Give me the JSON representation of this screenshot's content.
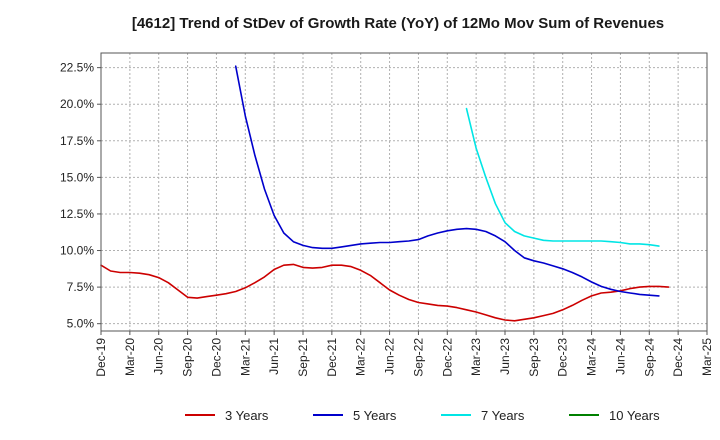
{
  "chart_data": {
    "type": "line",
    "title": "[4612]  Trend of StDev of Growth Rate (YoY) of 12Mo Mov Sum of Revenues",
    "xlabel": "",
    "ylabel": "",
    "ylim": [
      4.5,
      23.5
    ],
    "yticks": [
      {
        "value": 5.0,
        "label": "5.0%"
      },
      {
        "value": 7.5,
        "label": "7.5%"
      },
      {
        "value": 10.0,
        "label": "10.0%"
      },
      {
        "value": 12.5,
        "label": "12.5%"
      },
      {
        "value": 15.0,
        "label": "15.0%"
      },
      {
        "value": 17.5,
        "label": "17.5%"
      },
      {
        "value": 20.0,
        "label": "20.0%"
      },
      {
        "value": 22.5,
        "label": "22.5%"
      }
    ],
    "xticks": [
      {
        "index": 0,
        "label": "Dec-19"
      },
      {
        "index": 3,
        "label": "Mar-20"
      },
      {
        "index": 6,
        "label": "Jun-20"
      },
      {
        "index": 9,
        "label": "Sep-20"
      },
      {
        "index": 12,
        "label": "Dec-20"
      },
      {
        "index": 15,
        "label": "Mar-21"
      },
      {
        "index": 18,
        "label": "Jun-21"
      },
      {
        "index": 21,
        "label": "Sep-21"
      },
      {
        "index": 24,
        "label": "Dec-21"
      },
      {
        "index": 27,
        "label": "Mar-22"
      },
      {
        "index": 30,
        "label": "Jun-22"
      },
      {
        "index": 33,
        "label": "Sep-22"
      },
      {
        "index": 36,
        "label": "Dec-22"
      },
      {
        "index": 39,
        "label": "Mar-23"
      },
      {
        "index": 42,
        "label": "Jun-23"
      },
      {
        "index": 45,
        "label": "Sep-23"
      },
      {
        "index": 48,
        "label": "Dec-23"
      },
      {
        "index": 51,
        "label": "Mar-24"
      },
      {
        "index": 54,
        "label": "Jun-24"
      },
      {
        "index": 57,
        "label": "Sep-24"
      },
      {
        "index": 60,
        "label": "Dec-24"
      },
      {
        "index": 63,
        "label": "Mar-25"
      }
    ],
    "xrange": [
      0,
      63
    ],
    "grid": true,
    "legend_position": "bottom",
    "series": [
      {
        "name": "3 Years",
        "color": "#cc0000",
        "start_index": 0,
        "values": [
          9.0,
          8.6,
          8.5,
          8.5,
          8.45,
          8.35,
          8.15,
          7.8,
          7.3,
          6.8,
          6.75,
          6.85,
          6.95,
          7.05,
          7.2,
          7.45,
          7.8,
          8.2,
          8.7,
          9.0,
          9.05,
          8.85,
          8.8,
          8.85,
          9.0,
          9.0,
          8.9,
          8.65,
          8.3,
          7.8,
          7.3,
          6.95,
          6.65,
          6.45,
          6.35,
          6.25,
          6.2,
          6.1,
          5.95,
          5.8,
          5.6,
          5.4,
          5.25,
          5.2,
          5.3,
          5.4,
          5.55,
          5.7,
          5.95,
          6.25,
          6.6,
          6.9,
          7.1,
          7.15,
          7.25,
          7.4,
          7.5,
          7.55,
          7.55,
          7.5
        ]
      },
      {
        "name": "5 Years",
        "color": "#0000cc",
        "start_index": 14,
        "values": [
          22.6,
          19.2,
          16.5,
          14.2,
          12.4,
          11.2,
          10.6,
          10.35,
          10.2,
          10.15,
          10.15,
          10.25,
          10.35,
          10.45,
          10.5,
          10.55,
          10.55,
          10.6,
          10.65,
          10.75,
          11.0,
          11.2,
          11.35,
          11.45,
          11.5,
          11.45,
          11.3,
          11.0,
          10.6,
          10.0,
          9.5,
          9.3,
          9.15,
          8.95,
          8.75,
          8.5,
          8.2,
          7.85,
          7.55,
          7.35,
          7.2,
          7.1,
          7.0,
          6.95,
          6.9
        ]
      },
      {
        "name": "7 Years",
        "color": "#00e5e5",
        "start_index": 38,
        "values": [
          19.7,
          17.0,
          15.0,
          13.2,
          11.9,
          11.3,
          11.0,
          10.85,
          10.7,
          10.65,
          10.65,
          10.65,
          10.65,
          10.65,
          10.65,
          10.6,
          10.55,
          10.45,
          10.45,
          10.4,
          10.3
        ]
      },
      {
        "name": "10 Years",
        "color": "#008000",
        "start_index": 0,
        "values": []
      }
    ]
  }
}
